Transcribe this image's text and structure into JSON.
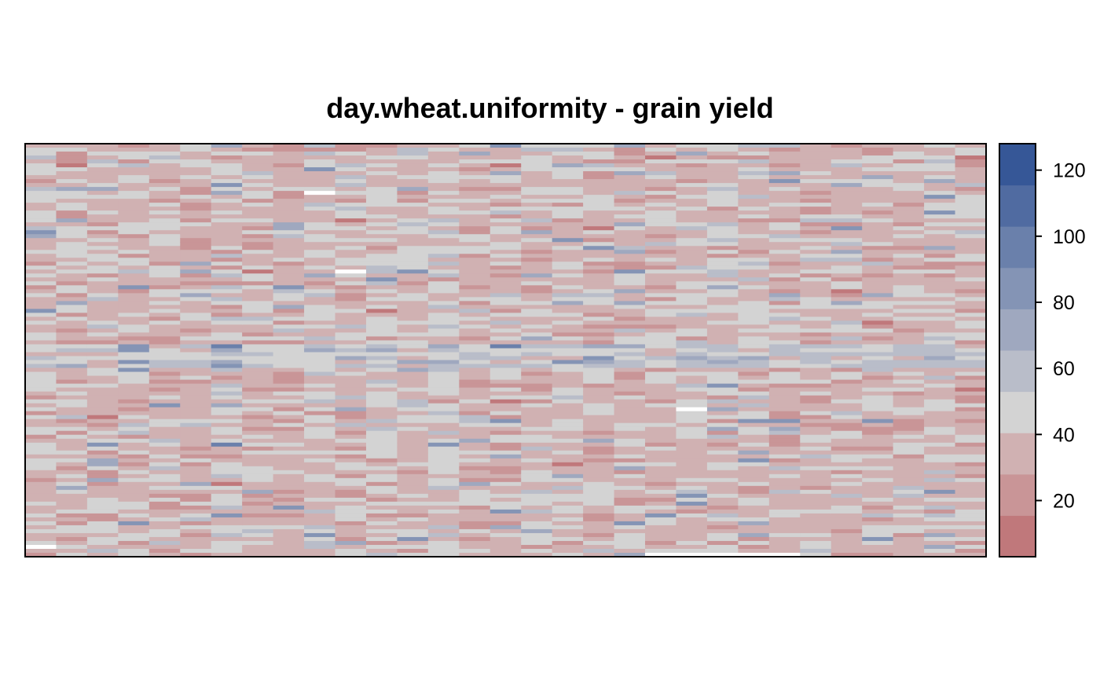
{
  "chart_data": {
    "type": "heatmap",
    "title": "day.wheat.uniformity - grain yield",
    "xlabel": "",
    "ylabel": "",
    "n_cols": 31,
    "n_rows": 105,
    "value_range": [
      3,
      128
    ],
    "colorbar": {
      "breaks": [
        3,
        15.5,
        28,
        40.5,
        53,
        65.5,
        78,
        90.5,
        103,
        115.5,
        128
      ],
      "ticks": [
        20,
        40,
        60,
        80,
        100,
        120
      ],
      "colors": [
        "#c0787b",
        "#c99597",
        "#d0b1b2",
        "#d3d3d3",
        "#b9bdc9",
        "#9fa8bf",
        "#8494b5",
        "#6a80ab",
        "#506ba1",
        "#365797"
      ]
    },
    "missing_cells": [
      {
        "col": 9,
        "row": 12
      },
      {
        "col": 10,
        "row": 32
      },
      {
        "col": 21,
        "row": 67
      },
      {
        "col": 0,
        "row": 102
      },
      {
        "col": 20,
        "row": 104
      },
      {
        "col": 21,
        "row": 104
      },
      {
        "col": 22,
        "row": 104
      },
      {
        "col": 23,
        "row": 104
      },
      {
        "col": 24,
        "row": 104
      }
    ],
    "cell_values_note": ""
  }
}
